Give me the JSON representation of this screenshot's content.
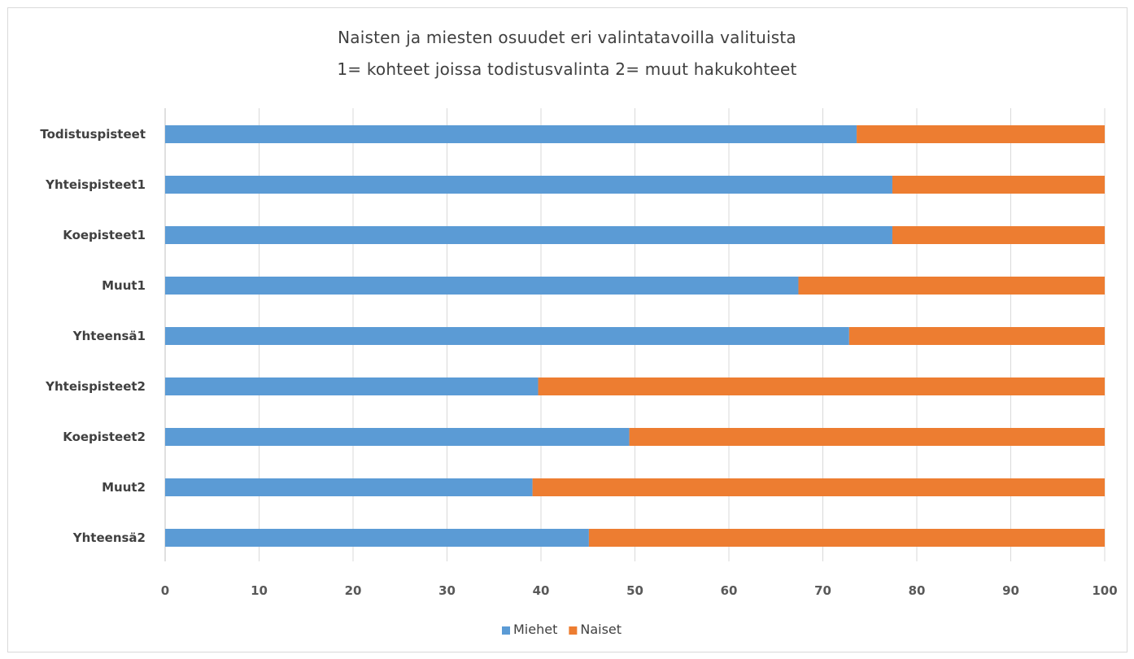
{
  "chart": {
    "title_line_1": "Naisten ja miesten osuudet eri valintatavoilla valituista",
    "title_line_2": "1= kohteet joissa todistusvalinta  2= muut hakukohteet"
  },
  "chart_data": {
    "type": "bar",
    "orientation": "horizontal",
    "stacked": true,
    "title": "Naisten ja miesten osuudet eri valintatavoilla valituista 1= kohteet joissa todistusvalinta  2= muut hakukohteet",
    "categories": [
      "Todistuspisteet",
      "Yhteispisteet1",
      "Koepisteet1",
      "Muut1",
      "Yhteensä1",
      "Yhteispisteet2",
      "Koepisteet2",
      "Muut2",
      "Yhteensä2"
    ],
    "series": [
      {
        "name": "Miehet",
        "color": "#5b9bd5",
        "values": [
          73.6,
          77.4,
          77.4,
          67.4,
          72.8,
          39.7,
          49.4,
          39.1,
          45.1
        ]
      },
      {
        "name": "Naiset",
        "color": "#ed7d31",
        "values": [
          26.4,
          22.6,
          22.6,
          32.6,
          27.2,
          60.3,
          50.6,
          60.9,
          54.9
        ]
      }
    ],
    "x_ticks": [
      "0",
      "10",
      "20",
      "30",
      "40",
      "50",
      "60",
      "70",
      "80",
      "90",
      "100"
    ],
    "xlim": [
      0,
      100
    ],
    "grid": "vertical",
    "legend_position": "bottom",
    "gridline_color": "#d9d9d9",
    "axis_color": "#bfbfbf"
  }
}
